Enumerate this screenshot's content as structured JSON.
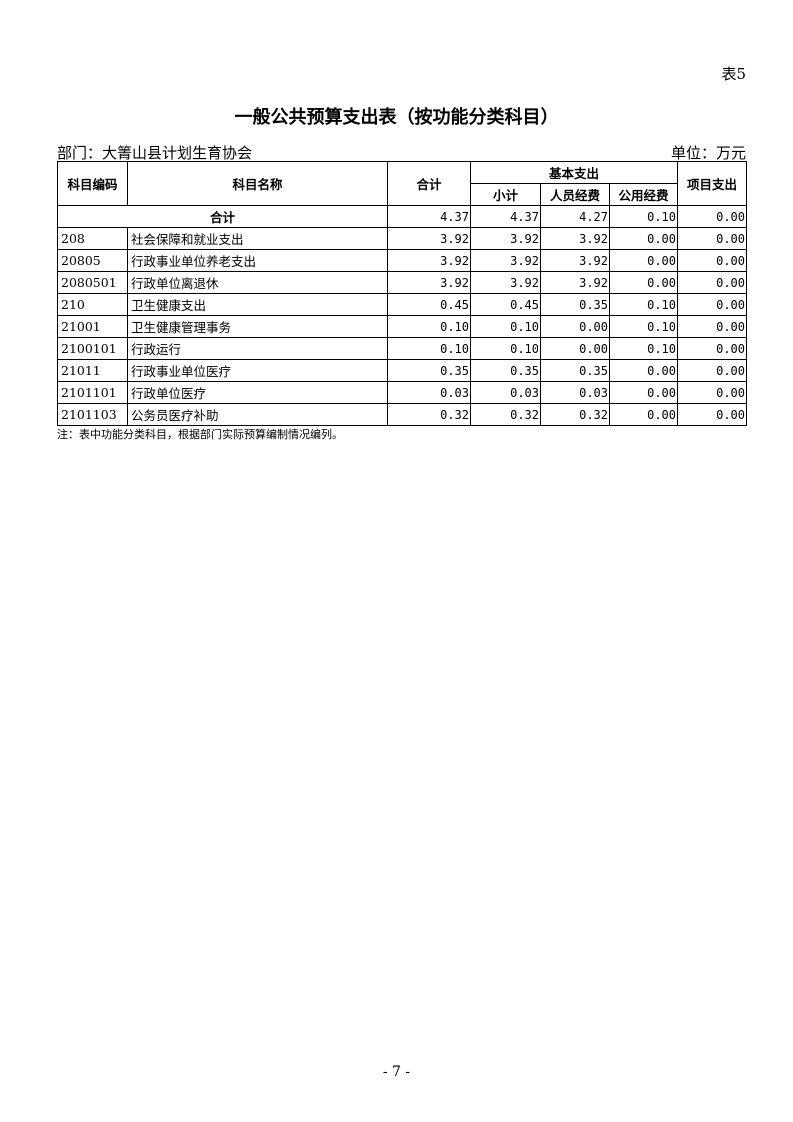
{
  "table_no": "表5",
  "title": "一般公共预算支出表（按功能分类科目）",
  "department": "部门：大箐山县计划生育协会",
  "unit": "单位：万元",
  "headers": {
    "code": "科目编码",
    "name": "科目名称",
    "total": "合计",
    "basic": "基本支出",
    "subtotal": "小计",
    "personnel": "人员经费",
    "public": "公用经费",
    "project": "项目支出"
  },
  "total_row": {
    "label": "合计",
    "values": [
      "4.37",
      "4.37",
      "4.27",
      "0.10",
      "0.00"
    ]
  },
  "rows": [
    {
      "code": "208",
      "name": "社会保障和就业支出",
      "values": [
        "3.92",
        "3.92",
        "3.92",
        "0.00",
        "0.00"
      ]
    },
    {
      "code": "20805",
      "name": "行政事业单位养老支出",
      "values": [
        "3.92",
        "3.92",
        "3.92",
        "0.00",
        "0.00"
      ]
    },
    {
      "code": "2080501",
      "name": "行政单位离退休",
      "values": [
        "3.92",
        "3.92",
        "3.92",
        "0.00",
        "0.00"
      ]
    },
    {
      "code": "210",
      "name": "卫生健康支出",
      "values": [
        "0.45",
        "0.45",
        "0.35",
        "0.10",
        "0.00"
      ]
    },
    {
      "code": "21001",
      "name": "卫生健康管理事务",
      "values": [
        "0.10",
        "0.10",
        "0.00",
        "0.10",
        "0.00"
      ]
    },
    {
      "code": "2100101",
      "name": "行政运行",
      "values": [
        "0.10",
        "0.10",
        "0.00",
        "0.10",
        "0.00"
      ]
    },
    {
      "code": "21011",
      "name": "行政事业单位医疗",
      "values": [
        "0.35",
        "0.35",
        "0.35",
        "0.00",
        "0.00"
      ]
    },
    {
      "code": "2101101",
      "name": "行政单位医疗",
      "values": [
        "0.03",
        "0.03",
        "0.03",
        "0.00",
        "0.00"
      ]
    },
    {
      "code": "2101103",
      "name": "公务员医疗补助",
      "values": [
        "0.32",
        "0.32",
        "0.32",
        "0.00",
        "0.00"
      ]
    }
  ],
  "note": "注：表中功能分类科目，根据部门实际预算编制情况编列。",
  "page_number": "- 7 -"
}
